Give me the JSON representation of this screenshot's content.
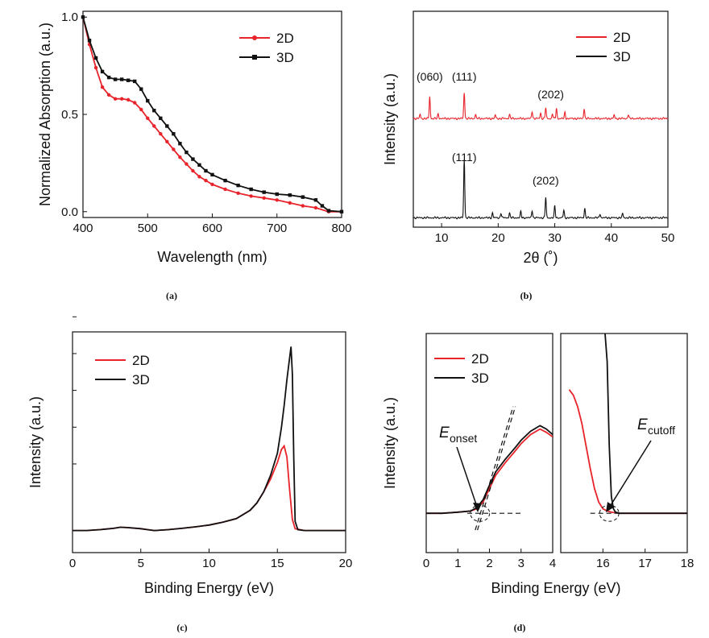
{
  "colors": {
    "2D": "#e8232a",
    "3D": "#111111"
  },
  "captions": {
    "a": "(a)",
    "b": "(b)",
    "c": "(c)",
    "d": "(d)"
  },
  "chart_data": [
    {
      "id": "a",
      "type": "line",
      "xlabel": "Wavelength (nm)",
      "ylabel": "Normalized Absorption (a.u.)",
      "xlim": [
        400,
        800
      ],
      "ylim": [
        -0.03,
        1.03
      ],
      "xticks": [
        400,
        500,
        600,
        700,
        800
      ],
      "yticks": [
        0.0,
        0.5,
        1.0
      ],
      "ytick_labels": [
        "0.0",
        "0.5",
        "1.0"
      ],
      "legend": "top-right",
      "markers": true,
      "series": [
        {
          "name": "2D",
          "points": [
            [
              400,
              1.0
            ],
            [
              410,
              0.86
            ],
            [
              420,
              0.74
            ],
            [
              430,
              0.64
            ],
            [
              440,
              0.6
            ],
            [
              450,
              0.58
            ],
            [
              460,
              0.58
            ],
            [
              470,
              0.575
            ],
            [
              480,
              0.56
            ],
            [
              490,
              0.525
            ],
            [
              500,
              0.48
            ],
            [
              510,
              0.44
            ],
            [
              520,
              0.4
            ],
            [
              530,
              0.36
            ],
            [
              540,
              0.32
            ],
            [
              550,
              0.28
            ],
            [
              560,
              0.245
            ],
            [
              570,
              0.21
            ],
            [
              580,
              0.18
            ],
            [
              590,
              0.16
            ],
            [
              600,
              0.14
            ],
            [
              620,
              0.115
            ],
            [
              640,
              0.095
            ],
            [
              660,
              0.08
            ],
            [
              680,
              0.07
            ],
            [
              700,
              0.06
            ],
            [
              720,
              0.045
            ],
            [
              740,
              0.03
            ],
            [
              760,
              0.02
            ],
            [
              780,
              0.0
            ],
            [
              800,
              0.0
            ]
          ]
        },
        {
          "name": "3D",
          "points": [
            [
              400,
              1.0
            ],
            [
              410,
              0.88
            ],
            [
              420,
              0.79
            ],
            [
              430,
              0.72
            ],
            [
              440,
              0.69
            ],
            [
              450,
              0.68
            ],
            [
              460,
              0.68
            ],
            [
              470,
              0.675
            ],
            [
              480,
              0.67
            ],
            [
              490,
              0.63
            ],
            [
              500,
              0.57
            ],
            [
              510,
              0.52
            ],
            [
              520,
              0.48
            ],
            [
              530,
              0.44
            ],
            [
              540,
              0.4
            ],
            [
              550,
              0.35
            ],
            [
              560,
              0.305
            ],
            [
              570,
              0.27
            ],
            [
              580,
              0.24
            ],
            [
              590,
              0.21
            ],
            [
              600,
              0.19
            ],
            [
              620,
              0.16
            ],
            [
              640,
              0.135
            ],
            [
              660,
              0.115
            ],
            [
              680,
              0.1
            ],
            [
              700,
              0.09
            ],
            [
              720,
              0.085
            ],
            [
              740,
              0.075
            ],
            [
              760,
              0.06
            ],
            [
              770,
              0.03
            ],
            [
              780,
              0.005
            ],
            [
              800,
              0.0
            ]
          ]
        }
      ]
    },
    {
      "id": "b",
      "type": "line",
      "xlabel": "2θ (˚)",
      "ylabel": "Intensity (a.u.)",
      "xlim": [
        5,
        50
      ],
      "xticks": [
        10,
        20,
        30,
        40,
        50
      ],
      "yticks_shown": false,
      "legend": "top-right",
      "series": [
        {
          "name": "2D",
          "baseline": 0.05,
          "peaks": [
            [
              6.2,
              0.3
            ],
            [
              7.9,
              1.6
            ],
            [
              9.4,
              0.35
            ],
            [
              14.0,
              1.9
            ],
            [
              16.0,
              0.3
            ],
            [
              19.5,
              0.25
            ],
            [
              22.0,
              0.3
            ],
            [
              26.0,
              0.55
            ],
            [
              27.5,
              0.4
            ],
            [
              28.4,
              0.8
            ],
            [
              29.6,
              0.35
            ],
            [
              30.3,
              0.75
            ],
            [
              31.8,
              0.45
            ],
            [
              35.2,
              0.75
            ],
            [
              40.5,
              0.25
            ],
            [
              43.0,
              0.3
            ]
          ]
        },
        {
          "name": "3D",
          "baseline": 0.04,
          "peaks": [
            [
              14.0,
              4.3
            ],
            [
              19.0,
              0.35
            ],
            [
              20.5,
              0.35
            ],
            [
              22.0,
              0.35
            ],
            [
              24.0,
              0.45
            ],
            [
              26.0,
              0.55
            ],
            [
              28.4,
              1.5
            ],
            [
              30.0,
              0.85
            ],
            [
              31.6,
              0.55
            ],
            [
              35.3,
              0.7
            ],
            [
              38.0,
              0.3
            ],
            [
              42.0,
              0.3
            ]
          ]
        }
      ],
      "annotations": [
        {
          "text": "(060)",
          "series": "2D",
          "x": 7.9
        },
        {
          "text": "(111)",
          "series": "2D",
          "x": 14.0
        },
        {
          "text": "(202)",
          "series": "2D",
          "x": 29.3
        },
        {
          "text": "(111)",
          "series": "3D",
          "x": 14.0
        },
        {
          "text": "(202)",
          "series": "3D",
          "x": 28.4
        }
      ]
    },
    {
      "id": "c",
      "type": "line",
      "xlabel": "Binding Energy (eV)",
      "ylabel": "Intensity (a.u.)",
      "xlim": [
        0,
        20
      ],
      "ylim": [
        -0.12,
        1.08
      ],
      "xticks": [
        0,
        5,
        10,
        15,
        20
      ],
      "ytick_labels_shown": false,
      "legend": "top-left",
      "series": [
        {
          "name": "2D",
          "points": [
            [
              0,
              0.0
            ],
            [
              1,
              0.0
            ],
            [
              2,
              0.005
            ],
            [
              3,
              0.012
            ],
            [
              3.5,
              0.018
            ],
            [
              4,
              0.016
            ],
            [
              5,
              0.01
            ],
            [
              5.5,
              0.005
            ],
            [
              6,
              0.0
            ],
            [
              7,
              0.005
            ],
            [
              8,
              0.012
            ],
            [
              9,
              0.02
            ],
            [
              10,
              0.03
            ],
            [
              11,
              0.045
            ],
            [
              12,
              0.065
            ],
            [
              13,
              0.11
            ],
            [
              13.5,
              0.15
            ],
            [
              14,
              0.21
            ],
            [
              14.5,
              0.28
            ],
            [
              15,
              0.37
            ],
            [
              15.3,
              0.44
            ],
            [
              15.5,
              0.46
            ],
            [
              15.7,
              0.4
            ],
            [
              15.9,
              0.22
            ],
            [
              16.1,
              0.06
            ],
            [
              16.3,
              0.01
            ],
            [
              17,
              0.0
            ],
            [
              20,
              0.0
            ]
          ]
        },
        {
          "name": "3D",
          "points": [
            [
              0,
              0.0
            ],
            [
              1,
              0.0
            ],
            [
              2,
              0.005
            ],
            [
              3,
              0.012
            ],
            [
              3.5,
              0.018
            ],
            [
              4,
              0.016
            ],
            [
              5,
              0.01
            ],
            [
              5.5,
              0.005
            ],
            [
              6,
              0.0
            ],
            [
              7,
              0.005
            ],
            [
              8,
              0.012
            ],
            [
              9,
              0.02
            ],
            [
              10,
              0.03
            ],
            [
              11,
              0.045
            ],
            [
              12,
              0.065
            ],
            [
              13,
              0.11
            ],
            [
              13.5,
              0.15
            ],
            [
              14,
              0.21
            ],
            [
              14.5,
              0.3
            ],
            [
              15,
              0.42
            ],
            [
              15.3,
              0.56
            ],
            [
              15.5,
              0.68
            ],
            [
              15.7,
              0.82
            ],
            [
              15.9,
              0.94
            ],
            [
              16.0,
              1.0
            ],
            [
              16.1,
              0.85
            ],
            [
              16.2,
              0.4
            ],
            [
              16.3,
              0.05
            ],
            [
              16.5,
              0.005
            ],
            [
              17,
              0.0
            ],
            [
              20,
              0.0
            ]
          ]
        }
      ]
    },
    {
      "id": "d",
      "type": "line",
      "xlabel": "Binding Energy (eV)",
      "ylabel": "Intensity (a.u.)",
      "legend": "top-left",
      "panels": [
        {
          "xlim": [
            0,
            4
          ],
          "ylim": [
            -0.35,
            1.6
          ],
          "xticks": [
            0,
            1,
            2,
            3,
            4
          ],
          "series": [
            {
              "name": "2D",
              "points": [
                [
                  0,
                  0.0
                ],
                [
                  0.5,
                  0.0
                ],
                [
                  1,
                  0.01
                ],
                [
                  1.4,
                  0.02
                ],
                [
                  1.6,
                  0.04
                ],
                [
                  1.8,
                  0.1
                ],
                [
                  2.0,
                  0.22
                ],
                [
                  2.2,
                  0.34
                ],
                [
                  2.5,
                  0.45
                ],
                [
                  2.8,
                  0.55
                ],
                [
                  3.0,
                  0.62
                ],
                [
                  3.3,
                  0.7
                ],
                [
                  3.6,
                  0.75
                ],
                [
                  3.8,
                  0.72
                ],
                [
                  4,
                  0.68
                ]
              ]
            },
            {
              "name": "3D",
              "points": [
                [
                  0,
                  0.0
                ],
                [
                  0.5,
                  0.0
                ],
                [
                  1,
                  0.01
                ],
                [
                  1.4,
                  0.02
                ],
                [
                  1.6,
                  0.05
                ],
                [
                  1.8,
                  0.12
                ],
                [
                  2.0,
                  0.25
                ],
                [
                  2.2,
                  0.37
                ],
                [
                  2.5,
                  0.48
                ],
                [
                  2.8,
                  0.58
                ],
                [
                  3.0,
                  0.65
                ],
                [
                  3.3,
                  0.73
                ],
                [
                  3.6,
                  0.78
                ],
                [
                  3.8,
                  0.75
                ],
                [
                  4,
                  0.7
                ]
              ]
            }
          ]
        },
        {
          "xlim": [
            15,
            18
          ],
          "ylim": [
            -0.35,
            1.6
          ],
          "xticks": [
            16,
            17,
            18
          ],
          "series": [
            {
              "name": "2D",
              "points": [
                [
                  15.2,
                  1.1
                ],
                [
                  15.3,
                  1.05
                ],
                [
                  15.4,
                  0.95
                ],
                [
                  15.5,
                  0.8
                ],
                [
                  15.6,
                  0.6
                ],
                [
                  15.7,
                  0.4
                ],
                [
                  15.8,
                  0.22
                ],
                [
                  15.9,
                  0.1
                ],
                [
                  16.0,
                  0.04
                ],
                [
                  16.1,
                  0.02
                ],
                [
                  16.2,
                  0.01
                ],
                [
                  16.4,
                  0.0
                ],
                [
                  18,
                  0.0
                ]
              ]
            },
            {
              "name": "3D",
              "points": [
                [
                  16.05,
                  1.6
                ],
                [
                  16.1,
                  1.35
                ],
                [
                  16.15,
                  0.6
                ],
                [
                  16.2,
                  0.15
                ],
                [
                  16.25,
                  0.04
                ],
                [
                  16.3,
                  0.01
                ],
                [
                  16.4,
                  0.0
                ],
                [
                  18,
                  0.0
                ]
              ]
            }
          ]
        }
      ],
      "annotations": [
        {
          "label": "E",
          "sub": "onset",
          "panel": 0,
          "x": 1.6
        },
        {
          "label": "E",
          "sub": "cutoff",
          "panel": 1,
          "x": 16.2
        }
      ]
    }
  ]
}
